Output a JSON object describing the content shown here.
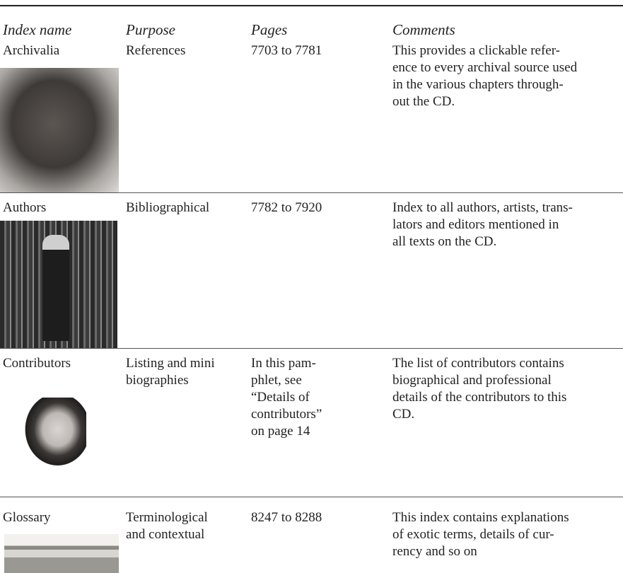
{
  "header": [
    "Index name",
    "Purpose",
    "Pages",
    "Comments"
  ],
  "rows": [
    {
      "name": "Archivalia",
      "purpose": [
        "References"
      ],
      "pages": [
        "7703 to 7781"
      ],
      "comments": [
        "This provides a clickable refer-",
        "ence to every archival source used",
        "in the various chapters through-",
        "out the CD."
      ]
    },
    {
      "name": "Authors",
      "purpose": [
        "Bibliographical"
      ],
      "pages": [
        "7782 to 7920"
      ],
      "comments": [
        "Index to all authors, artists, trans-",
        "lators and editors mentioned in",
        "all texts on the CD."
      ]
    },
    {
      "name": "Contributors",
      "purpose": [
        "Listing and mini",
        "biographies"
      ],
      "pages": [
        "In this pam-",
        "phlet, see",
        "“Details of",
        "contributors”",
        "on page 14"
      ],
      "comments": [
        "The list of contributors contains",
        "biographical and professional",
        "details of the contributors to this",
        "CD."
      ]
    },
    {
      "name": "Glossary",
      "purpose": [
        "Terminological",
        "and contextual"
      ],
      "pages": [
        "8247 to 8288"
      ],
      "comments": [
        "This index contains explanations",
        "of exotic terms, details of cur-",
        "rency and so on"
      ]
    }
  ]
}
